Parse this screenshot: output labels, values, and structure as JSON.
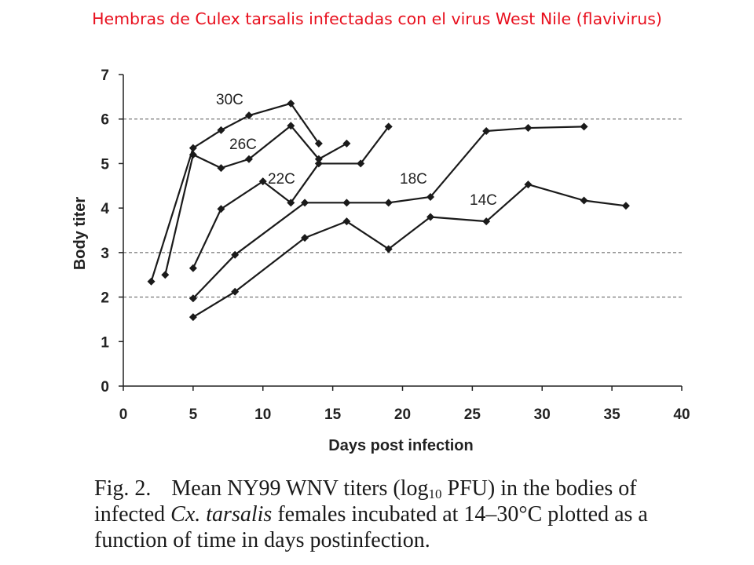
{
  "slide": {
    "title": "Hembras de Culex tarsalis infectadas con el virus West Nile (flavivirus)"
  },
  "chart_data": {
    "type": "line",
    "title": "",
    "xlabel": "Days post infection",
    "ylabel": "Body titer",
    "xlim": [
      0,
      40
    ],
    "ylim": [
      0,
      7
    ],
    "xticks": [
      "0",
      "5",
      "10",
      "15",
      "20",
      "25",
      "30",
      "35",
      "40"
    ],
    "yticks": [
      "0",
      "1",
      "2",
      "3",
      "4",
      "5",
      "6",
      "7"
    ],
    "gridlines_y": [
      2,
      3,
      6
    ],
    "series": [
      {
        "name": "30C",
        "x": [
          2,
          5,
          7,
          9,
          12,
          14
        ],
        "y": [
          2.35,
          5.35,
          5.75,
          6.08,
          6.35,
          5.45
        ]
      },
      {
        "name": "26C",
        "x": [
          3,
          5,
          7,
          9,
          12,
          14,
          16
        ],
        "y": [
          2.5,
          5.2,
          4.9,
          5.1,
          5.85,
          5.1,
          5.45
        ]
      },
      {
        "name": "22C",
        "x": [
          5,
          7,
          10,
          12,
          14,
          17,
          19
        ],
        "y": [
          2.65,
          3.98,
          4.6,
          4.12,
          5.0,
          5.0,
          5.83
        ]
      },
      {
        "name": "18C",
        "x": [
          5,
          8,
          13,
          16,
          19,
          22,
          26,
          29,
          33
        ],
        "y": [
          1.97,
          2.95,
          4.12,
          4.12,
          4.12,
          4.25,
          5.73,
          5.8,
          5.83
        ]
      },
      {
        "name": "14C",
        "x": [
          5,
          8,
          13,
          16,
          19,
          22,
          26,
          29,
          33,
          36
        ],
        "y": [
          1.55,
          2.12,
          3.33,
          3.7,
          3.08,
          3.8,
          3.7,
          4.53,
          4.17,
          4.05
        ]
      }
    ],
    "annotations": [
      "30C",
      "26C",
      "22C",
      "18C",
      "14C"
    ]
  },
  "caption": {
    "fig_label": "Fig. 2.",
    "text_1": "Mean NY99 WNV titers (log",
    "sub": "10",
    "text_2": " PFU) in the bodies of infected ",
    "species": "Cx. tarsalis",
    "text_3": " females incubated at 14–30°C plotted as a function of time in days postinfection."
  }
}
